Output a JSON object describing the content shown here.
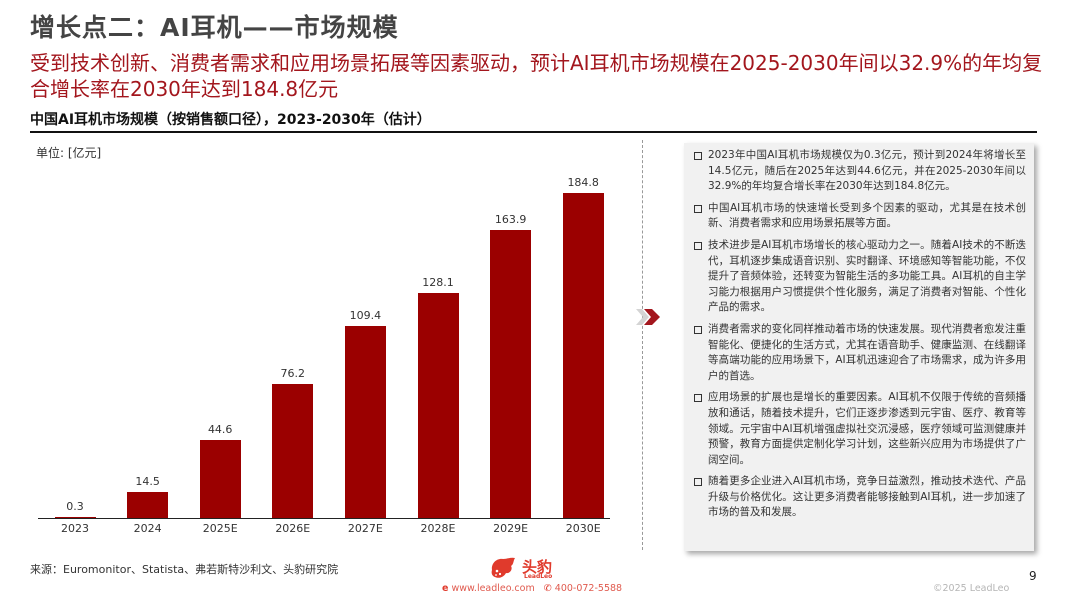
{
  "header": {
    "title": "增长点二：AI耳机——市场规模",
    "subtitle": "受到技术创新、消费者需求和应用场景拓展等因素驱动，预计AI耳机市场规模在2025-2030年间以32.9%的年均复合增长率在2030年达到184.8亿元"
  },
  "chart": {
    "heading": "中国AI耳机市场规模（按销售额口径），2023-2030年（估计）",
    "unit": "单位: [亿元]"
  },
  "chart_data": {
    "type": "bar",
    "title": "中国AI耳机市场规模（按销售额口径），2023-2030年（估计）",
    "xlabel": "",
    "ylabel": "单位: [亿元]",
    "categories": [
      "2023",
      "2024",
      "2025E",
      "2026E",
      "2027E",
      "2028E",
      "2029E",
      "2030E"
    ],
    "values": [
      0.3,
      14.5,
      44.6,
      76.2,
      109.4,
      128.1,
      163.9,
      184.8
    ],
    "value_labels": [
      "0.3",
      "14.5",
      "44.6",
      "76.2",
      "109.4",
      "128.1",
      "163.9",
      "184.8"
    ],
    "bar_color": "#9b0000",
    "ylim": [
      0,
      190
    ],
    "grid": false,
    "legend": null
  },
  "panel": {
    "bullets": [
      "2023年中国AI耳机市场规模仅为0.3亿元，预计到2024年将增长至14.5亿元，随后在2025年达到44.6亿元，并在2025-2030年间以32.9%的年均复合增长率在2030年达到184.8亿元。",
      "中国AI耳机市场的快速增长受到多个因素的驱动，尤其是在技术创新、消费者需求和应用场景拓展等方面。",
      "技术进步是AI耳机市场增长的核心驱动力之一。随着AI技术的不断迭代，耳机逐步集成语音识别、实时翻译、环境感知等智能功能，不仅提升了音频体验，还转变为智能生活的多功能工具。AI耳机的自主学习能力根据用户习惯提供个性化服务，满足了消费者对智能、个性化产品的需求。",
      "消费者需求的变化同样推动着市场的快速发展。现代消费者愈发注重智能化、便捷化的生活方式，尤其在语音助手、健康监测、在线翻译等高端功能的应用场景下，AI耳机迅速迎合了市场需求，成为许多用户的首选。",
      "应用场景的扩展也是增长的重要因素。AI耳机不仅限于传统的音频播放和通话，随着技术提升，它们正逐步渗透到元宇宙、医疗、教育等领域。元宇宙中AI耳机增强虚拟社交沉浸感，医疗领域可监测健康并预警，教育方面提供定制化学习计划，这些新兴应用为市场提供了广阔空间。",
      "随着更多企业进入AI耳机市场，竞争日益激烈，推动技术迭代、产品升级与价格优化。这让更多消费者能够接触到AI耳机，进一步加速了市场的普及和发展。"
    ]
  },
  "footer": {
    "source": "来源：Euromonitor、Statista、弗若斯特沙利文、头豹研究院",
    "logo_cn": "头豹",
    "logo_en": "LeadLeo",
    "website": "www.leadleo.com",
    "phone": "400-072-5588",
    "page_number": "9",
    "copyright": "©2025 LeadLeo"
  },
  "colors": {
    "accent_red": "#a3161d",
    "bar_red": "#9b0000",
    "panel_bg": "#f1f1f1",
    "logo_red": "#e03a2c"
  },
  "icons": {
    "chevron": "double-chevron-right-icon",
    "bullet": "hollow-square-bullet-icon",
    "logo": "leopard-logo-icon",
    "web": "ie-web-icon",
    "phone": "phone-icon"
  }
}
